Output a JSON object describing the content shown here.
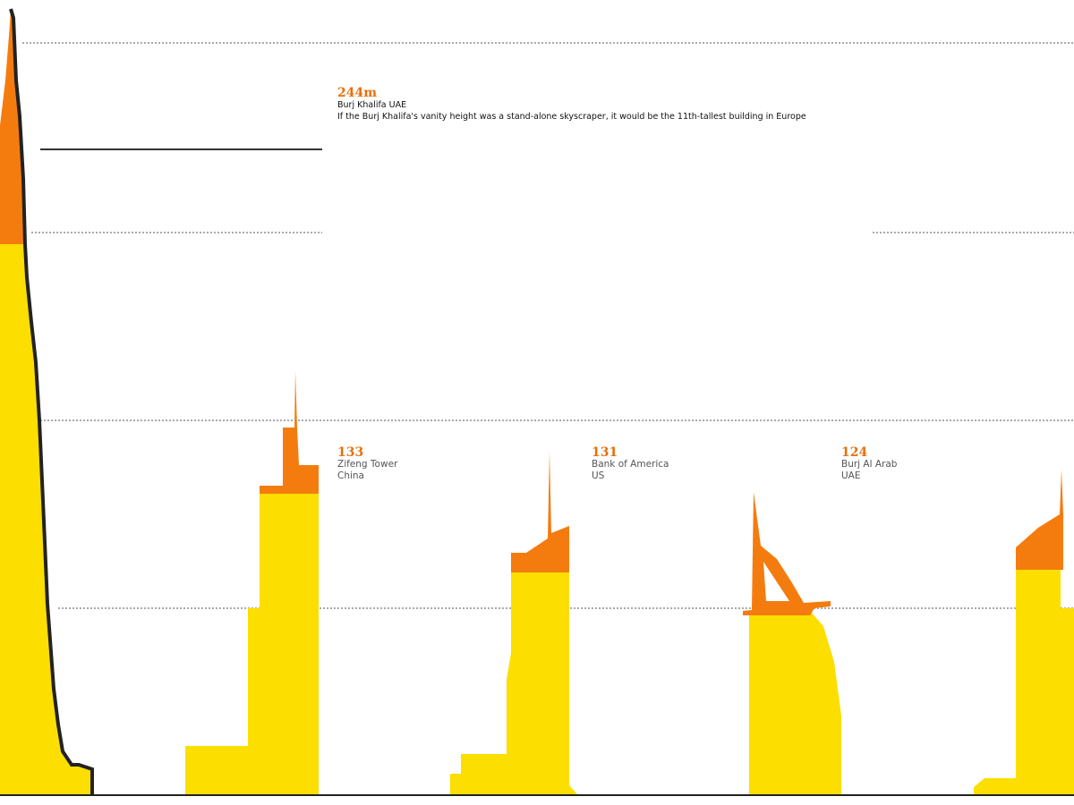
{
  "buildings": [
    {
      "height": "244m",
      "name": "Burj Khalifa UAE",
      "note": "If the Burj Khalifa's vanity height was a stand-alone skyscraper, it would be the 11th-tallest building in Europe"
    },
    {
      "height": "133",
      "name": "Zifeng Tower",
      "country": "China"
    },
    {
      "height": "131",
      "name": "Bank of America",
      "country": "US"
    },
    {
      "height": "124",
      "name": "Burj Al Arab",
      "country": "UAE"
    }
  ]
}
